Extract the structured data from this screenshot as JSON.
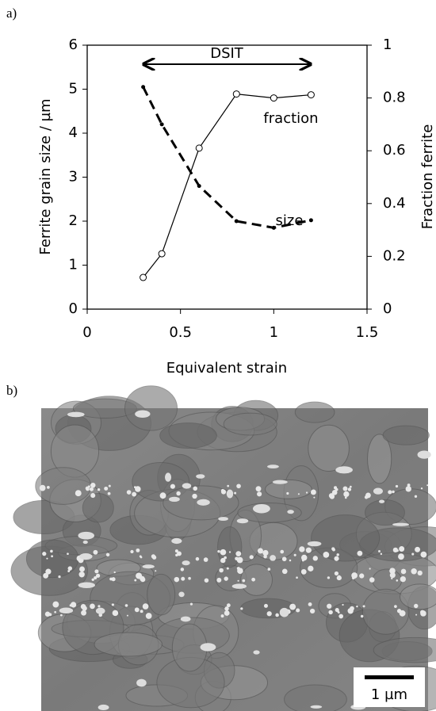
{
  "panel_labels": [
    "a)",
    "b)"
  ],
  "chart_data": {
    "type": "line",
    "xlabel": "Equivalent strain",
    "ylabel": "Ferrite grain size / µm",
    "y2label": "Fraction ferrite",
    "xlim": [
      0,
      1.5
    ],
    "xticks": [
      0,
      0.5,
      1,
      1.5
    ],
    "ylim": [
      0,
      6
    ],
    "yticks": [
      0,
      1,
      2,
      3,
      4,
      5,
      6
    ],
    "y2lim": [
      0,
      1
    ],
    "y2ticks": [
      0,
      0.2,
      0.4,
      0.6,
      0.8,
      1
    ],
    "annotations": [
      "DSIT",
      "fraction",
      "size"
    ],
    "series": [
      {
        "name": "size",
        "color": "#000000",
        "dashed": true,
        "marker": "dot",
        "x": [
          0.3,
          0.4,
          0.6,
          0.8,
          1.0,
          1.2
        ],
        "values": [
          5.05,
          4.2,
          2.8,
          2.0,
          1.85,
          2.02
        ]
      },
      {
        "name": "fraction",
        "color": "#000000",
        "dashed": false,
        "marker": "circle",
        "axis": "y2",
        "x": [
          0.3,
          0.4,
          0.6,
          0.8,
          1.0,
          1.2
        ],
        "values": [
          0.12,
          0.21,
          0.61,
          0.815,
          0.8,
          0.812
        ]
      }
    ]
  },
  "micrograph": {
    "scale_bar_label": "1 µm"
  }
}
